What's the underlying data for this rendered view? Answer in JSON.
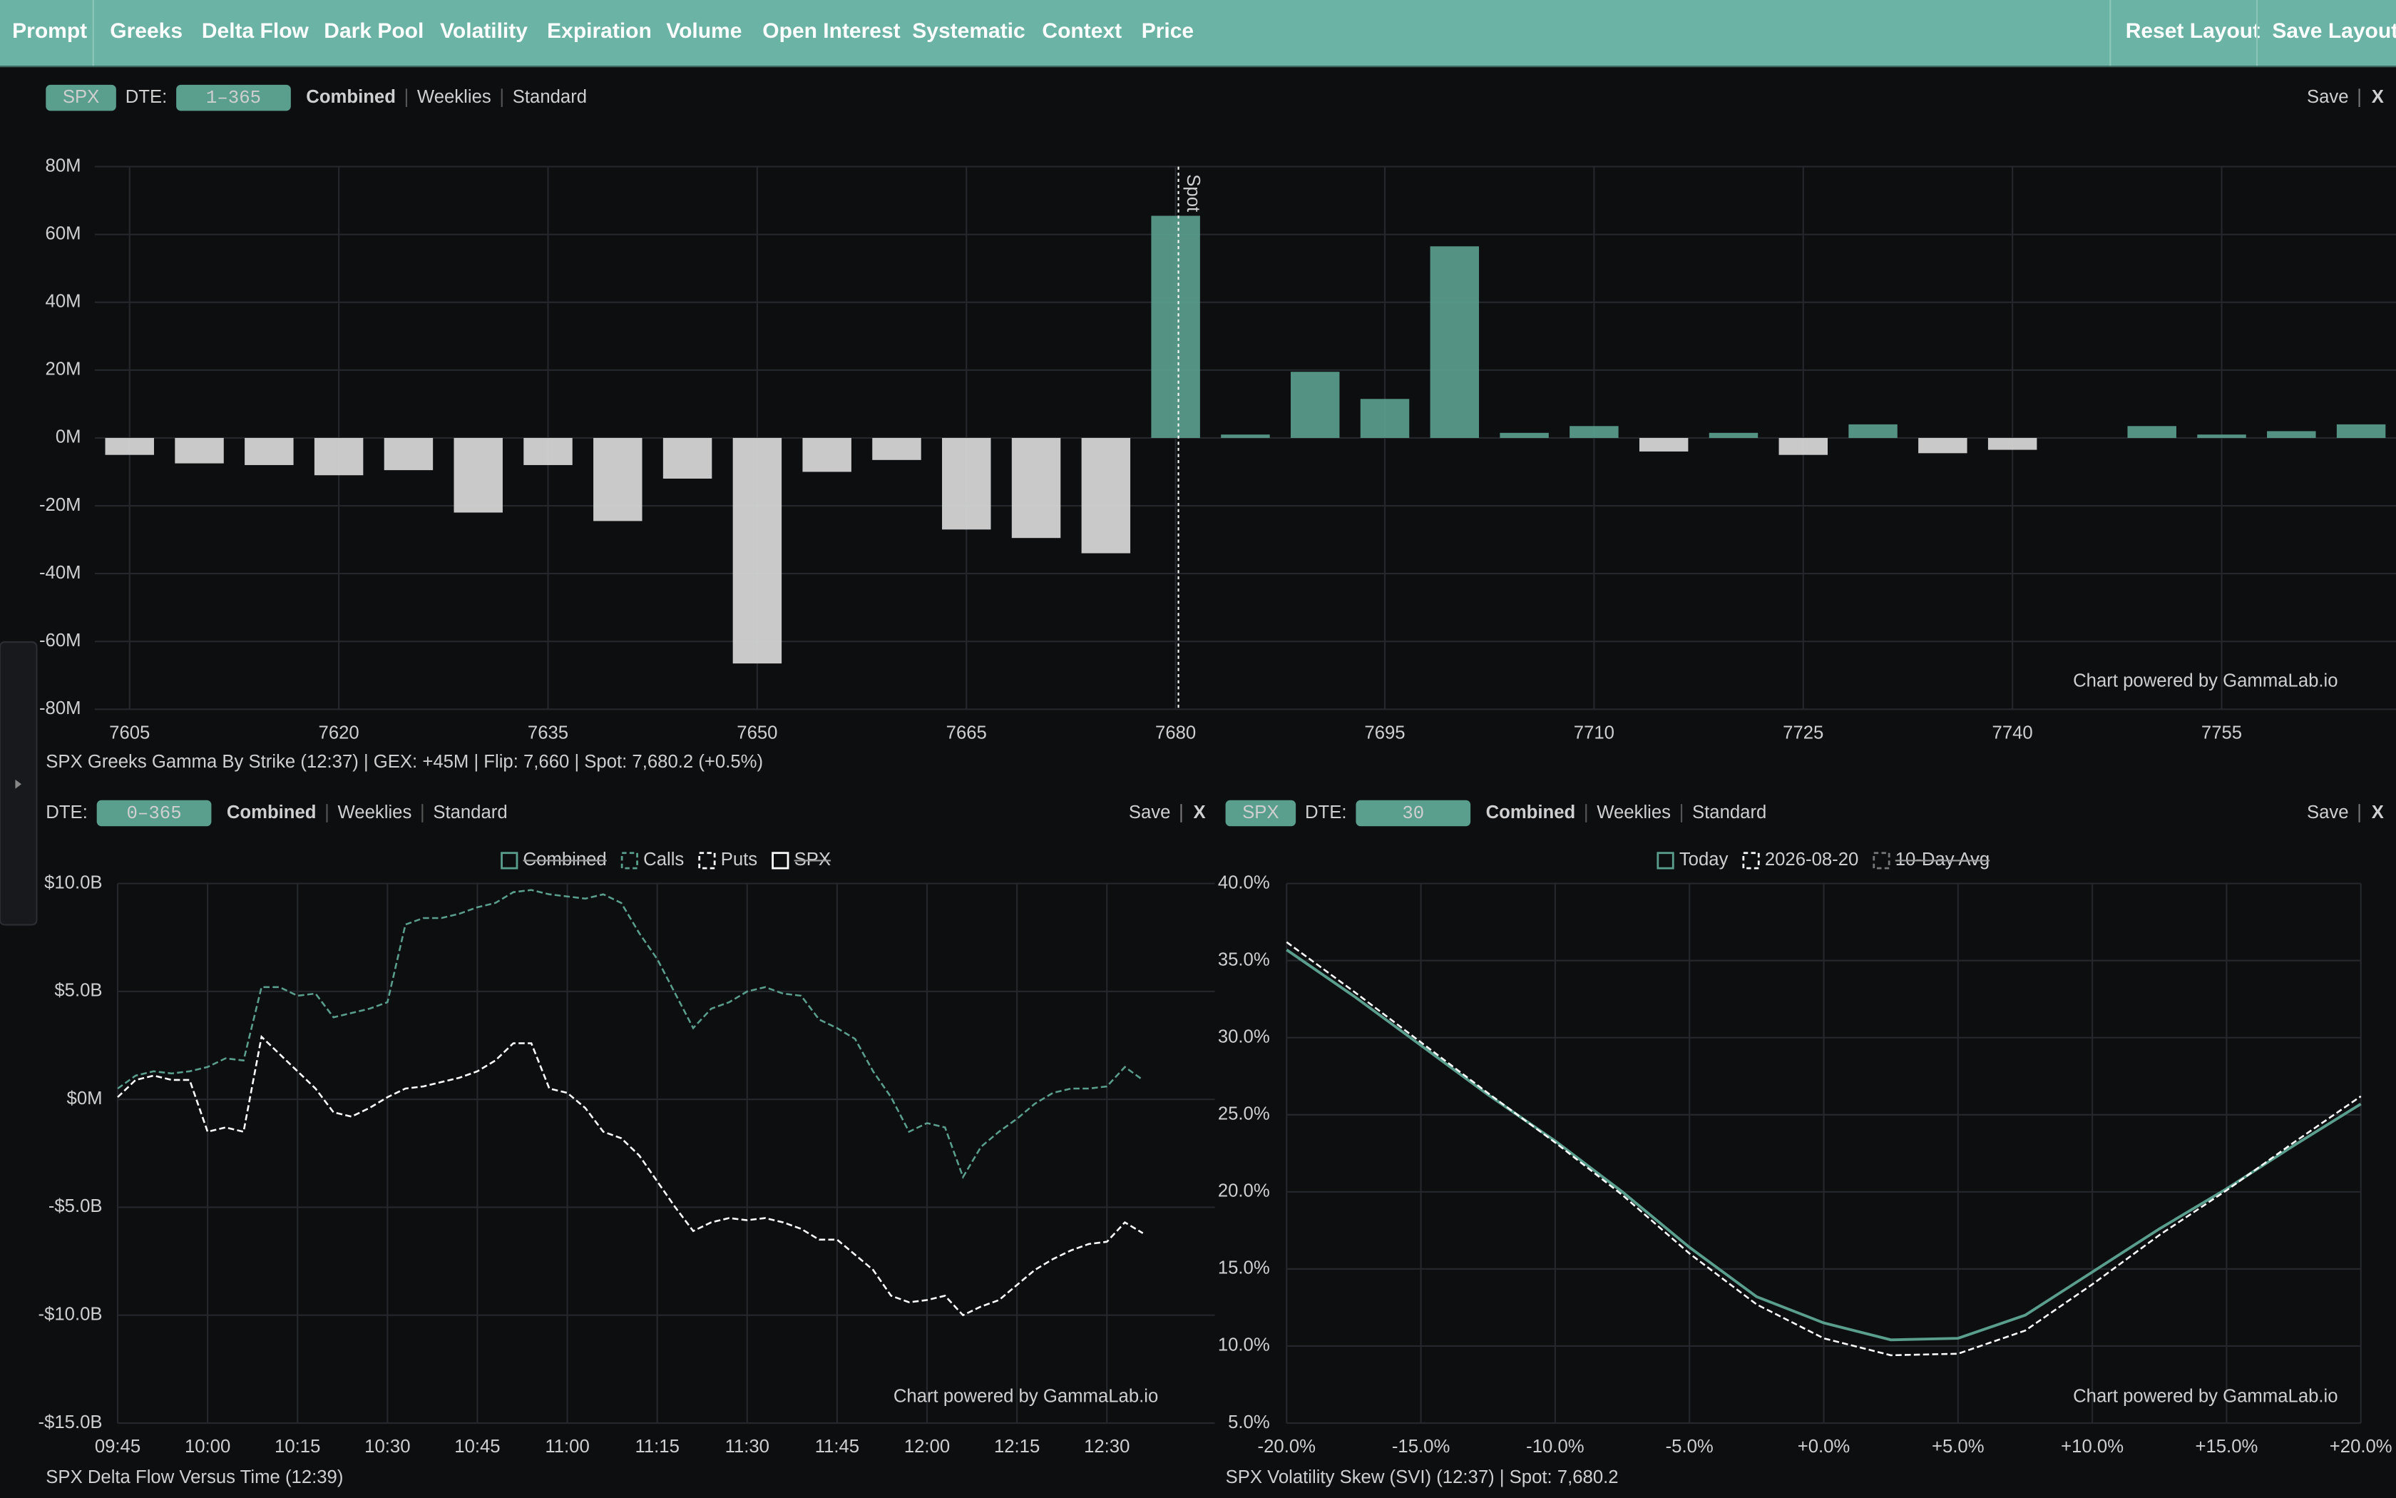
{
  "nav": {
    "items": [
      "Prompt",
      "Greeks",
      "Delta Flow",
      "Dark Pool",
      "Volatility",
      "Expiration",
      "Volume",
      "Open Interest",
      "Systematic",
      "Context",
      "Price"
    ],
    "actions": [
      "Reset Layout",
      "Save Layout"
    ]
  },
  "panels": [
    {
      "symbol": "SPX",
      "dte_label": "DTE:",
      "dte": "1–365",
      "modes": [
        "Combined",
        "Weeklies",
        "Standard"
      ],
      "actions": [
        "Save",
        "X"
      ]
    },
    {
      "dte_label": "DTE:",
      "dte": "0–365",
      "modes": [
        "Combined",
        "Weeklies",
        "Standard"
      ],
      "actions": [
        "Save",
        "X"
      ]
    },
    {
      "symbol": "SPX",
      "dte_label": "DTE:",
      "dte": "30",
      "modes": [
        "Combined",
        "Weeklies",
        "Standard"
      ],
      "actions": [
        "Save",
        "X"
      ]
    }
  ],
  "chart_data": [
    {
      "type": "bar",
      "title": "SPX Greeks Gamma By Strike (12:37) | GEX: +45M | Flip: 7,660 | Spot: 7,680.2 (+0.5%)",
      "x": [
        7605,
        7610,
        7615,
        7620,
        7625,
        7630,
        7635,
        7640,
        7645,
        7650,
        7655,
        7660,
        7665,
        7670,
        7675,
        7680,
        7685,
        7690,
        7695,
        7700,
        7705,
        7710,
        7715,
        7720,
        7725,
        7730,
        7735,
        7740,
        7745,
        7750,
        7755,
        7760,
        7765
      ],
      "values": [
        -5,
        -7.5,
        -8,
        -11,
        -9.5,
        -22,
        -8,
        -24.5,
        -12,
        -66.5,
        -10,
        -6.5,
        -27,
        -29.5,
        -34,
        65.5,
        1,
        19.5,
        11.5,
        56.5,
        1.5,
        3.5,
        -4,
        1.5,
        -5,
        4,
        -4.5,
        -3.5,
        0,
        3.5,
        1,
        2,
        4
      ],
      "positive_color": "#5a9e8e",
      "negative_color": "#d9d9d9",
      "xlim": [
        7602.5,
        7767.5
      ],
      "xticks": [
        7605,
        7620,
        7635,
        7650,
        7665,
        7680,
        7695,
        7710,
        7725,
        7740,
        7755
      ],
      "ylim": [
        -80,
        80
      ],
      "yticks": [
        {
          "value": 80,
          "label": "80M"
        },
        {
          "value": 60,
          "label": "60M"
        },
        {
          "value": 40,
          "label": "40M"
        },
        {
          "value": 20,
          "label": "20M"
        },
        {
          "value": 0,
          "label": "0M"
        },
        {
          "value": -20,
          "label": "-20M"
        },
        {
          "value": -40,
          "label": "-40M"
        },
        {
          "value": -60,
          "label": "-60M"
        },
        {
          "value": -80,
          "label": "-80M"
        }
      ],
      "grid": true,
      "spot": 7680.2,
      "spot_label": "Spot",
      "watermark": "Chart powered by GammaLab.io"
    },
    {
      "type": "line",
      "title": "SPX Delta Flow Versus Time (12:39)",
      "x": [
        "09:45",
        "09:48",
        "09:51",
        "09:54",
        "09:57",
        "10:00",
        "10:03",
        "10:06",
        "10:09",
        "10:12",
        "10:15",
        "10:18",
        "10:21",
        "10:24",
        "10:27",
        "10:30",
        "10:33",
        "10:36",
        "10:39",
        "10:42",
        "10:45",
        "10:48",
        "10:51",
        "10:54",
        "10:57",
        "11:00",
        "11:03",
        "11:06",
        "11:09",
        "11:12",
        "11:15",
        "11:18",
        "11:21",
        "11:24",
        "11:27",
        "11:30",
        "11:33",
        "11:36",
        "11:39",
        "11:42",
        "11:45",
        "11:48",
        "11:51",
        "11:54",
        "11:57",
        "12:00",
        "12:03",
        "12:06",
        "12:09",
        "12:12",
        "12:15",
        "12:18",
        "12:21",
        "12:24",
        "12:27",
        "12:30",
        "12:33",
        "12:36"
      ],
      "series": [
        {
          "name": "Combined",
          "color": "#5a9e8e",
          "hidden": true
        },
        {
          "name": "Calls",
          "color": "#5a9e8e",
          "dash": true,
          "values": [
            0.5,
            1.1,
            1.3,
            1.2,
            1.3,
            1.5,
            1.9,
            1.8,
            5.2,
            5.2,
            4.8,
            4.9,
            3.8,
            4.0,
            4.2,
            4.5,
            8.1,
            8.4,
            8.4,
            8.6,
            8.9,
            9.1,
            9.6,
            9.7,
            9.5,
            9.4,
            9.3,
            9.5,
            9.1,
            7.7,
            6.5,
            4.9,
            3.3,
            4.2,
            4.5,
            5.0,
            5.2,
            4.9,
            4.8,
            3.7,
            3.3,
            2.8,
            1.3,
            0.1,
            -1.5,
            -1.1,
            -1.3,
            -3.6,
            -2.2,
            -1.5,
            -0.9,
            -0.2,
            0.3,
            0.5,
            0.5,
            0.6,
            1.5,
            0.9
          ]
        },
        {
          "name": "Puts",
          "color": "#ffffff",
          "dash": true,
          "values": [
            0.1,
            0.9,
            1.1,
            0.9,
            0.9,
            -1.5,
            -1.3,
            -1.5,
            2.9,
            2.1,
            1.3,
            0.5,
            -0.6,
            -0.8,
            -0.4,
            0.1,
            0.5,
            0.6,
            0.8,
            1.0,
            1.3,
            1.8,
            2.6,
            2.6,
            0.5,
            0.3,
            -0.4,
            -1.5,
            -1.8,
            -2.6,
            -3.8,
            -5.0,
            -6.1,
            -5.7,
            -5.5,
            -5.6,
            -5.5,
            -5.7,
            -6.0,
            -6.5,
            -6.5,
            -7.2,
            -7.9,
            -9.1,
            -9.4,
            -9.3,
            -9.1,
            -10.0,
            -9.6,
            -9.3,
            -8.6,
            -7.9,
            -7.4,
            -7.0,
            -6.7,
            -6.6,
            -5.7,
            -6.2
          ]
        },
        {
          "name": "SPX",
          "color": "#ffffff",
          "hidden": true
        }
      ],
      "xlim": [
        "09:45",
        "12:48"
      ],
      "xticks": [
        "09:45",
        "10:00",
        "10:15",
        "10:30",
        "10:45",
        "11:00",
        "11:15",
        "11:30",
        "11:45",
        "12:00",
        "12:15",
        "12:30"
      ],
      "ylim": [
        -15,
        10
      ],
      "yticks": [
        {
          "value": 10,
          "label": "$10.0B"
        },
        {
          "value": 5,
          "label": "$5.0B"
        },
        {
          "value": 0,
          "label": "$0M"
        },
        {
          "value": -5,
          "label": "-$5.0B"
        },
        {
          "value": -10,
          "label": "-$10.0B"
        },
        {
          "value": -15,
          "label": "-$15.0B"
        }
      ],
      "grid": true,
      "watermark": "Chart powered by GammaLab.io"
    },
    {
      "type": "line",
      "title": "SPX Volatility Skew (SVI) (12:37) | Spot: 7,680.2",
      "x": [
        -20,
        -17.5,
        -15,
        -12.5,
        -10,
        -7.5,
        -5,
        -2.5,
        0,
        2.5,
        5,
        7.5,
        10,
        12.5,
        15,
        17.5,
        20
      ],
      "series": [
        {
          "name": "Today",
          "color": "#5a9e8e",
          "values": [
            35.7,
            32.7,
            29.5,
            26.3,
            23.3,
            20.0,
            16.4,
            13.2,
            11.5,
            10.4,
            10.5,
            12.0,
            14.8,
            17.6,
            20.2,
            23.0,
            25.7
          ]
        },
        {
          "name": "2026-08-20",
          "color": "#ffffff",
          "dash": true,
          "values": [
            36.2,
            33.0,
            29.7,
            26.4,
            23.2,
            19.8,
            16.0,
            12.7,
            10.5,
            9.4,
            9.5,
            11.0,
            14.0,
            17.2,
            20.1,
            23.2,
            26.2
          ]
        },
        {
          "name": "10-Day Avg",
          "color": "#777777",
          "dash": true,
          "hidden": true
        }
      ],
      "xlim": [
        -20,
        20
      ],
      "xticks": [
        {
          "value": -20,
          "label": "-20.0%"
        },
        {
          "value": -15,
          "label": "-15.0%"
        },
        {
          "value": -10,
          "label": "-10.0%"
        },
        {
          "value": -5,
          "label": "-5.0%"
        },
        {
          "value": 0,
          "label": "+0.0%"
        },
        {
          "value": 5,
          "label": "+5.0%"
        },
        {
          "value": 10,
          "label": "+10.0%"
        },
        {
          "value": 15,
          "label": "+15.0%"
        },
        {
          "value": 20,
          "label": "+20.0%"
        }
      ],
      "ylim": [
        5,
        40
      ],
      "yticks": [
        {
          "value": 40,
          "label": "40.0%"
        },
        {
          "value": 35,
          "label": "35.0%"
        },
        {
          "value": 30,
          "label": "30.0%"
        },
        {
          "value": 25,
          "label": "25.0%"
        },
        {
          "value": 20,
          "label": "20.0%"
        },
        {
          "value": 15,
          "label": "15.0%"
        },
        {
          "value": 10,
          "label": "10.0%"
        },
        {
          "value": 5,
          "label": "5.0%"
        }
      ],
      "grid": true,
      "watermark": "Chart powered by GammaLab.io"
    }
  ]
}
